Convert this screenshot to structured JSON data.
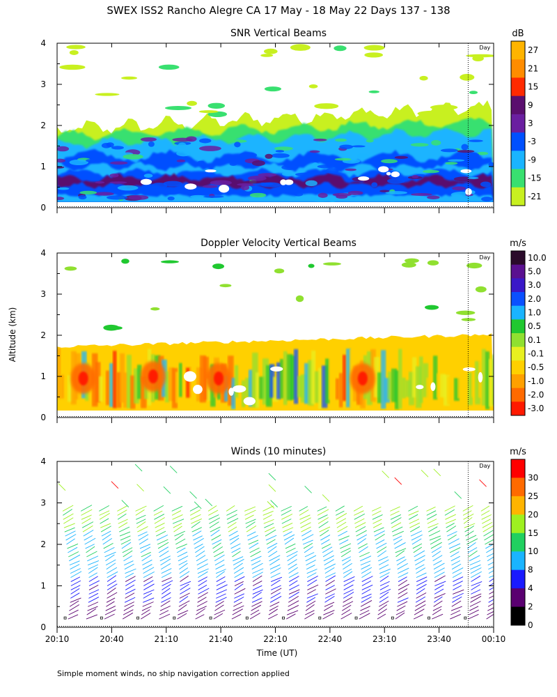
{
  "header": {
    "title": "SWEX ISS2 Rancho Alegre CA  17 May - 18 May 22 Days 137 - 138"
  },
  "footnote": "Simple moment winds, no ship navigation correction applied",
  "xaxis": {
    "label": "Time (UT)",
    "ticks": [
      "20:10",
      "20:40",
      "21:10",
      "21:40",
      "22:10",
      "22:40",
      "23:10",
      "23:40",
      "00:10"
    ],
    "ylabel": "Altitude (km)",
    "day_marker": "Day"
  },
  "chart_data": [
    {
      "type": "heatmap",
      "title": "SNR Vertical Beams",
      "ylim": [
        0,
        4
      ],
      "yticks": [
        "0",
        "1",
        "2",
        "3",
        "4"
      ],
      "colorbar_unit": "dB",
      "colorbar_labels": [
        "27",
        "21",
        "15",
        "9",
        "3",
        "-3",
        "-9",
        "-15",
        "-21"
      ],
      "colors": [
        "#ffb400",
        "#ff8c00",
        "#ff2a00",
        "#5a0f6e",
        "#6a1fa0",
        "#0050ff",
        "#1ab4ff",
        "#39e070",
        "#c8f020"
      ],
      "day_line_time": "23:56"
    },
    {
      "type": "heatmap",
      "title": "Doppler Velocity Vertical Beams",
      "ylim": [
        0,
        4
      ],
      "yticks": [
        "0",
        "1",
        "2",
        "3",
        "4"
      ],
      "colorbar_unit": "m/s",
      "colorbar_labels": [
        "10.0",
        "5.0",
        "3.0",
        "2.0",
        "1.0",
        "0.5",
        "0.1",
        "-0.1",
        "-0.5",
        "-1.0",
        "-2.0",
        "-3.0"
      ],
      "colors": [
        "#2a0a2a",
        "#5a1090",
        "#3a18c8",
        "#0a50ff",
        "#1ab4ff",
        "#20c830",
        "#90e030",
        "#e8f020",
        "#ffd000",
        "#ffa000",
        "#ff6a00",
        "#ff1a00"
      ],
      "day_line_time": "23:56"
    },
    {
      "type": "scatter",
      "title": "Winds (10 minutes)",
      "ylim": [
        0,
        4
      ],
      "yticks": [
        "0",
        "1",
        "2",
        "3",
        "4"
      ],
      "colorbar_unit": "m/s",
      "colorbar_labels": [
        "30",
        "25",
        "20",
        "15",
        "10",
        "8",
        "4",
        "2",
        "0"
      ],
      "colors": [
        "#ff0000",
        "#ff6a00",
        "#ffb400",
        "#9ef020",
        "#20d060",
        "#1ab4ff",
        "#1a1aff",
        "#5a0070",
        "#000000"
      ],
      "profile_times": [
        "20:15",
        "20:25",
        "20:35",
        "20:45",
        "20:55",
        "21:05",
        "21:15",
        "21:25",
        "21:35",
        "21:45",
        "21:55",
        "22:05",
        "22:15",
        "22:25",
        "22:35",
        "22:45",
        "22:55",
        "23:05",
        "23:15",
        "23:25",
        "23:35",
        "23:45",
        "23:55",
        "00:05"
      ],
      "day_line_time": "23:56"
    }
  ]
}
